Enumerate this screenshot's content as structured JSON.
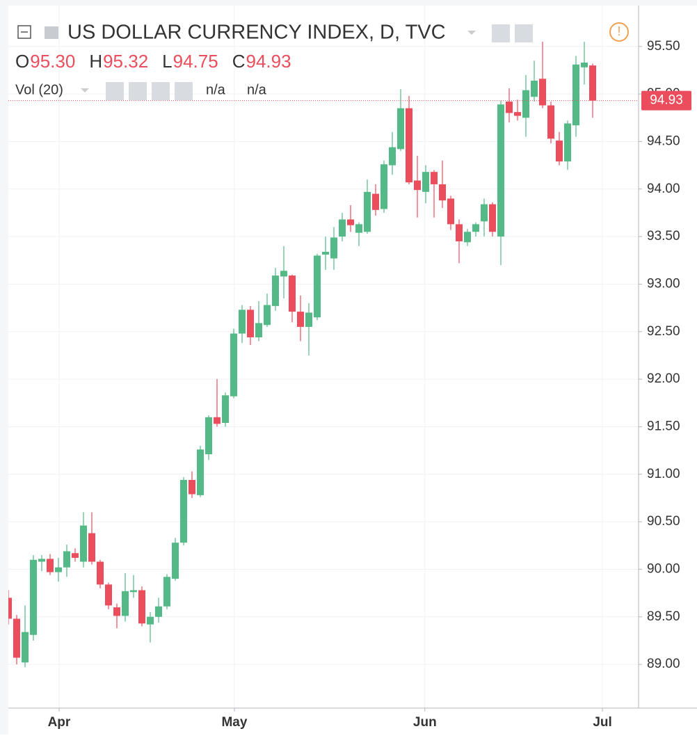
{
  "chart_data": {
    "type": "candlestick",
    "title": "US DOLLAR CURRENCY INDEX, D, TVC",
    "ohlc_legend": [
      {
        "label": "O",
        "text": "95.30"
      },
      {
        "label": "H",
        "text": "95.32"
      },
      {
        "label": "L",
        "text": "94.75"
      },
      {
        "label": "C",
        "text": "94.93"
      }
    ],
    "indicator": "Vol (20)",
    "indicator_values": [
      "n/a",
      "n/a"
    ],
    "up_color": "#53b987",
    "down_color": "#eb4d5c",
    "grid": true,
    "open": [
      89.7,
      89.48,
      89.02,
      89.31,
      90.08,
      90.11,
      89.97,
      90.02,
      90.17,
      90.08,
      90.38,
      90.08,
      89.84,
      89.6,
      89.51,
      89.76,
      89.78,
      89.42,
      89.5,
      89.61,
      89.9,
      90.28,
      90.94,
      90.78,
      91.21,
      91.6,
      91.54,
      91.82,
      92.48,
      92.73,
      92.44,
      92.57,
      92.77,
      93.08,
      93.09,
      92.71,
      92.55,
      92.65,
      93.31,
      93.27,
      93.5,
      93.68,
      93.54,
      93.55,
      93.95,
      93.79,
      94.25,
      94.42,
      94.85,
      94.09,
      93.97,
      94.18,
      94.05,
      93.9,
      93.63,
      93.44,
      93.55,
      93.66,
      93.84,
      93.5,
      94.92,
      94.81,
      94.75,
      94.97,
      95.16,
      94.88,
      94.51,
      94.29,
      94.67,
      95.28,
      95.3
    ],
    "high": [
      89.78,
      89.52,
      89.62,
      90.15,
      90.15,
      90.16,
      90.12,
      90.26,
      90.22,
      90.6,
      90.6,
      90.1,
      89.86,
      89.64,
      89.96,
      89.94,
      89.82,
      89.55,
      89.7,
      89.95,
      90.33,
      90.97,
      91.03,
      91.3,
      91.62,
      92.0,
      91.86,
      92.53,
      92.78,
      92.77,
      92.82,
      92.9,
      93.17,
      93.4,
      93.1,
      92.88,
      92.8,
      93.32,
      93.5,
      93.6,
      93.75,
      93.83,
      93.65,
      94.1,
      94.05,
      94.3,
      94.6,
      95.05,
      94.98,
      94.35,
      94.25,
      94.2,
      94.3,
      93.93,
      93.68,
      93.58,
      93.65,
      93.9,
      93.86,
      94.93,
      95.06,
      94.94,
      95.2,
      95.35,
      95.55,
      94.92,
      94.6,
      94.72,
      95.4,
      95.55,
      95.32
    ],
    "low": [
      89.42,
      89.0,
      88.97,
      89.25,
      89.98,
      89.94,
      89.87,
      89.92,
      90.08,
      90.02,
      90.05,
      89.8,
      89.58,
      89.38,
      89.45,
      89.7,
      89.4,
      89.23,
      89.44,
      89.58,
      89.88,
      90.25,
      90.75,
      90.76,
      91.15,
      91.5,
      91.5,
      91.8,
      92.38,
      92.36,
      92.4,
      92.55,
      92.72,
      92.85,
      92.6,
      92.4,
      92.25,
      92.62,
      93.15,
      93.15,
      93.45,
      93.55,
      93.4,
      93.53,
      93.72,
      93.75,
      94.15,
      94.4,
      94.05,
      93.7,
      93.85,
      93.7,
      93.8,
      93.57,
      93.22,
      93.4,
      93.5,
      93.5,
      93.5,
      93.2,
      94.7,
      94.72,
      94.55,
      94.92,
      94.85,
      94.48,
      94.25,
      94.2,
      94.55,
      95.1,
      94.75
    ],
    "close": [
      89.48,
      89.07,
      89.34,
      90.1,
      90.11,
      89.97,
      90.02,
      90.19,
      90.12,
      90.46,
      90.08,
      89.84,
      89.62,
      89.51,
      89.77,
      89.78,
      89.43,
      89.5,
      89.61,
      89.92,
      90.28,
      90.94,
      90.79,
      91.26,
      91.6,
      91.53,
      91.83,
      92.48,
      92.73,
      92.44,
      92.59,
      92.78,
      93.09,
      93.14,
      92.71,
      92.55,
      92.7,
      93.3,
      93.34,
      93.49,
      93.68,
      93.62,
      93.63,
      93.97,
      93.78,
      94.26,
      94.44,
      94.85,
      94.07,
      93.99,
      94.18,
      94.05,
      93.88,
      93.63,
      93.45,
      93.55,
      93.63,
      93.84,
      93.55,
      94.89,
      94.8,
      94.77,
      95.04,
      95.14,
      94.88,
      94.53,
      94.29,
      94.69,
      95.31,
      95.33,
      94.93
    ],
    "xlim": [
      0,
      75.5
    ],
    "xticks": [
      {
        "value": 6.08,
        "label": "Apr"
      },
      {
        "value": 27.08,
        "label": "May"
      },
      {
        "value": 49.9,
        "label": "Jun"
      },
      {
        "value": 71.17,
        "label": "Jul"
      }
    ],
    "ylim": [
      88.54,
      95.93
    ],
    "yticks": [
      {
        "value": 89,
        "label": "89.00"
      },
      {
        "value": 89.5,
        "label": "89.50"
      },
      {
        "value": 90,
        "label": "90.00"
      },
      {
        "value": 90.5,
        "label": "90.50"
      },
      {
        "value": 91,
        "label": "91.00"
      },
      {
        "value": 91.5,
        "label": "91.50"
      },
      {
        "value": 92,
        "label": "92.00"
      },
      {
        "value": 92.5,
        "label": "92.50"
      },
      {
        "value": 93,
        "label": "93.00"
      },
      {
        "value": 93.5,
        "label": "93.50"
      },
      {
        "value": 94,
        "label": "94.00"
      },
      {
        "value": 94.5,
        "label": "94.50"
      },
      {
        "value": 95,
        "label": "95.00"
      },
      {
        "value": 95.5,
        "label": "95.50"
      }
    ]
  }
}
